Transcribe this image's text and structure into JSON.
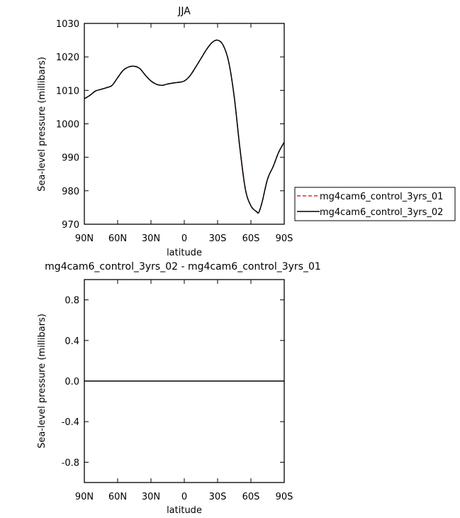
{
  "chart_data": [
    {
      "type": "line",
      "title": "JJA",
      "xlabel": "latitude",
      "ylabel": "Sea-level pressure (millibars)",
      "xlim": [
        90,
        -90
      ],
      "ylim": [
        970,
        1030
      ],
      "xticks": [
        90,
        60,
        30,
        0,
        -30,
        -60,
        -90
      ],
      "xtick_labels": [
        "90N",
        "60N",
        "30N",
        "0",
        "30S",
        "60S",
        "90S"
      ],
      "yticks": [
        970,
        980,
        990,
        1000,
        1010,
        1020,
        1030
      ],
      "ytick_labels": [
        "970",
        "980",
        "990",
        "1000",
        "1010",
        "1020",
        "1030"
      ],
      "legend_position": "right",
      "series": [
        {
          "name": "mg4cam6_control_3yrs_01",
          "color": "#e8262b",
          "style": "dashed",
          "x": [
            90,
            85,
            80,
            75,
            70,
            65,
            60,
            55,
            50,
            45,
            40,
            35,
            30,
            25,
            20,
            15,
            10,
            5,
            0,
            -5,
            -10,
            -15,
            -20,
            -25,
            -30,
            -35,
            -40,
            -45,
            -50,
            -55,
            -60,
            -65,
            -67,
            -70,
            -75,
            -80,
            -85,
            -90
          ],
          "y": [
            1007.5,
            1008.5,
            1009.8,
            1010.3,
            1010.8,
            1011.5,
            1013.8,
            1016.0,
            1017.0,
            1017.2,
            1016.5,
            1014.5,
            1012.8,
            1011.8,
            1011.5,
            1011.9,
            1012.2,
            1012.4,
            1012.8,
            1014.3,
            1016.8,
            1019.5,
            1022.2,
            1024.3,
            1025.0,
            1023.5,
            1018.5,
            1008.0,
            993.0,
            980.5,
            975.5,
            973.8,
            973.5,
            976.5,
            983.5,
            987.2,
            991.5,
            994.5
          ]
        },
        {
          "name": "mg4cam6_control_3yrs_02",
          "color": "#000000",
          "style": "solid",
          "x": [
            90,
            85,
            80,
            75,
            70,
            65,
            60,
            55,
            50,
            45,
            40,
            35,
            30,
            25,
            20,
            15,
            10,
            5,
            0,
            -5,
            -10,
            -15,
            -20,
            -25,
            -30,
            -35,
            -40,
            -45,
            -50,
            -55,
            -60,
            -65,
            -67,
            -70,
            -75,
            -80,
            -85,
            -90
          ],
          "y": [
            1007.5,
            1008.5,
            1009.8,
            1010.3,
            1010.8,
            1011.5,
            1013.8,
            1016.0,
            1017.0,
            1017.2,
            1016.5,
            1014.5,
            1012.8,
            1011.8,
            1011.5,
            1011.9,
            1012.2,
            1012.4,
            1012.8,
            1014.3,
            1016.8,
            1019.5,
            1022.2,
            1024.3,
            1025.0,
            1023.5,
            1018.5,
            1008.0,
            993.0,
            980.5,
            975.5,
            973.8,
            973.5,
            976.5,
            983.5,
            987.2,
            991.5,
            994.5
          ]
        }
      ]
    },
    {
      "type": "line",
      "title": "mg4cam6_control_3yrs_02 - mg4cam6_control_3yrs_01",
      "xlabel": "latitude",
      "ylabel": "Sea-level pressure (millibars)",
      "xlim": [
        90,
        -90
      ],
      "ylim": [
        -1,
        1
      ],
      "xticks": [
        90,
        60,
        30,
        0,
        -30,
        -60,
        -90
      ],
      "xtick_labels": [
        "90N",
        "60N",
        "30N",
        "0",
        "30S",
        "60S",
        "90S"
      ],
      "yticks": [
        -0.8,
        -0.4,
        0.0,
        0.4,
        0.8
      ],
      "ytick_labels": [
        "-0.8",
        "-0.4",
        "0.0",
        "0.4",
        "0.8"
      ],
      "series": [
        {
          "color": "#000000",
          "style": "solid",
          "x": [
            90,
            -90
          ],
          "y": [
            0,
            0
          ]
        }
      ]
    }
  ]
}
